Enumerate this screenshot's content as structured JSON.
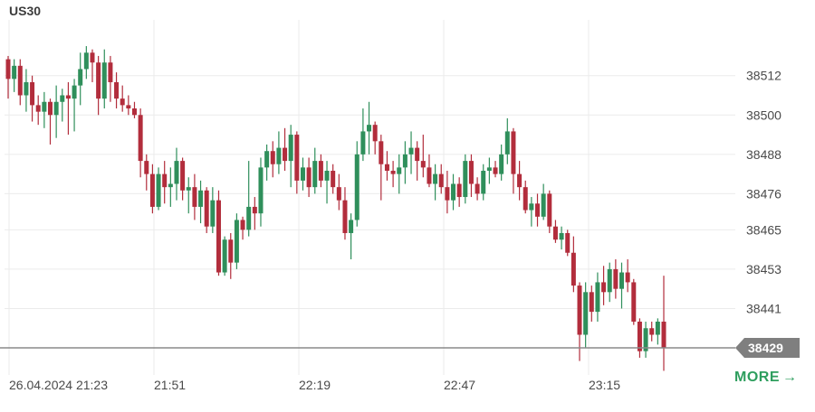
{
  "header": {
    "symbol": "US30"
  },
  "more": {
    "label": "MORE",
    "arrow": "→"
  },
  "colors": {
    "up": "#2f8f5b",
    "down": "#b22d3c",
    "grid": "#ebebeb",
    "price_line": "#8a8a8a",
    "price_badge": "#7f7f7f",
    "more": "#2e9e5e"
  },
  "chart_data": {
    "type": "candlestick",
    "title": "US30",
    "y_ticks": [
      38512,
      38500,
      38488,
      38476,
      38465,
      38453,
      38441
    ],
    "ylim": [
      38423.5,
      38529
    ],
    "x_ticks": [
      "26.04.2024 21:23",
      "21:51",
      "22:19",
      "22:47",
      "23:15"
    ],
    "last_price": 38429,
    "candles": [
      [
        38517,
        38518,
        38505,
        38511
      ],
      [
        38511,
        38517,
        38507,
        38515
      ],
      [
        38515,
        38517,
        38503,
        38506
      ],
      [
        38506,
        38514,
        38501,
        38510
      ],
      [
        38510,
        38512,
        38498,
        38503
      ],
      [
        38503,
        38506,
        38497,
        38501
      ],
      [
        38501,
        38507,
        38496,
        38504
      ],
      [
        38504,
        38505,
        38491,
        38500
      ],
      [
        38500,
        38509,
        38493,
        38504
      ],
      [
        38504,
        38508,
        38498,
        38506
      ],
      [
        38506,
        38510,
        38494,
        38505
      ],
      [
        38505,
        38511,
        38495,
        38509
      ],
      [
        38509,
        38519,
        38503,
        38514
      ],
      [
        38514,
        38521,
        38511,
        38519
      ],
      [
        38519,
        38520,
        38510,
        38516
      ],
      [
        38516,
        38518,
        38500,
        38505
      ],
      [
        38505,
        38520,
        38502,
        38516
      ],
      [
        38516,
        38518,
        38504,
        38510
      ],
      [
        38510,
        38513,
        38502,
        38505
      ],
      [
        38505,
        38509,
        38501,
        38503
      ],
      [
        38503,
        38506,
        38500,
        38502
      ],
      [
        38502,
        38504,
        38499,
        38500
      ],
      [
        38500,
        38502,
        38481,
        38486
      ],
      [
        38486,
        38488,
        38477,
        38482
      ],
      [
        38482,
        38485,
        38470,
        38472
      ],
      [
        38472,
        38484,
        38471,
        38482
      ],
      [
        38482,
        38486,
        38473,
        38478
      ],
      [
        38478,
        38484,
        38472,
        38479
      ],
      [
        38479,
        38490,
        38474,
        38486
      ],
      [
        38486,
        38487,
        38474,
        38477
      ],
      [
        38477,
        38481,
        38470,
        38478
      ],
      [
        38478,
        38482,
        38468,
        38472
      ],
      [
        38472,
        38480,
        38467,
        38477
      ],
      [
        38477,
        38478,
        38464,
        38466
      ],
      [
        38466,
        38478,
        38464,
        38474
      ],
      [
        38474,
        38477,
        38451,
        38452
      ],
      [
        38452,
        38463,
        38451,
        38462
      ],
      [
        38462,
        38464,
        38450,
        38455
      ],
      [
        38455,
        38470,
        38453,
        38468
      ],
      [
        38468,
        38469,
        38462,
        38465
      ],
      [
        38465,
        38486,
        38463,
        38472
      ],
      [
        38472,
        38475,
        38465,
        38470
      ],
      [
        38470,
        38487,
        38466,
        38484
      ],
      [
        38484,
        38491,
        38480,
        38489
      ],
      [
        38489,
        38492,
        38481,
        38485
      ],
      [
        38485,
        38495,
        38482,
        38490
      ],
      [
        38490,
        38496,
        38483,
        38486
      ],
      [
        38486,
        38497,
        38478,
        38494
      ],
      [
        38494,
        38495,
        38476,
        38480
      ],
      [
        38480,
        38487,
        38477,
        38484
      ],
      [
        38484,
        38487,
        38475,
        38478
      ],
      [
        38478,
        38490,
        38476,
        38486
      ],
      [
        38486,
        38488,
        38478,
        38480
      ],
      [
        38480,
        38486,
        38473,
        38483
      ],
      [
        38483,
        38485,
        38476,
        38478
      ],
      [
        38478,
        38482,
        38471,
        38474
      ],
      [
        38474,
        38478,
        38462,
        38464
      ],
      [
        38464,
        38470,
        38456,
        38468
      ],
      [
        38468,
        38492,
        38466,
        38488
      ],
      [
        38488,
        38502,
        38486,
        38495
      ],
      [
        38495,
        38504,
        38488,
        38497
      ],
      [
        38497,
        38498,
        38488,
        38492
      ],
      [
        38492,
        38494,
        38474,
        38485
      ],
      [
        38485,
        38489,
        38480,
        38483
      ],
      [
        38483,
        38486,
        38478,
        38482
      ],
      [
        38482,
        38488,
        38476,
        38484
      ],
      [
        38484,
        38492,
        38479,
        38488
      ],
      [
        38488,
        38495,
        38482,
        38490
      ],
      [
        38490,
        38492,
        38480,
        38486
      ],
      [
        38486,
        38494,
        38481,
        38484
      ],
      [
        38484,
        38488,
        38478,
        38479
      ],
      [
        38479,
        38485,
        38474,
        38482
      ],
      [
        38482,
        38485,
        38476,
        38478
      ],
      [
        38478,
        38483,
        38470,
        38474
      ],
      [
        38474,
        38482,
        38471,
        38479
      ],
      [
        38479,
        38481,
        38472,
        38475
      ],
      [
        38475,
        38488,
        38473,
        38486
      ],
      [
        38486,
        38488,
        38475,
        38479
      ],
      [
        38479,
        38481,
        38474,
        38476
      ],
      [
        38476,
        38485,
        38474,
        38483
      ],
      [
        38483,
        38487,
        38479,
        38484
      ],
      [
        38484,
        38486,
        38481,
        38482
      ],
      [
        38482,
        38491,
        38480,
        38488
      ],
      [
        38488,
        38499,
        38485,
        38495
      ],
      [
        38495,
        38496,
        38476,
        38482
      ],
      [
        38482,
        38486,
        38474,
        38478
      ],
      [
        38478,
        38480,
        38470,
        38471
      ],
      [
        38471,
        38475,
        38466,
        38473
      ],
      [
        38473,
        38476,
        38466,
        38469
      ],
      [
        38469,
        38479,
        38468,
        38476
      ],
      [
        38476,
        38477,
        38464,
        38466
      ],
      [
        38466,
        38468,
        38461,
        38462
      ],
      [
        38462,
        38466,
        38459,
        38464
      ],
      [
        38464,
        38465,
        38457,
        38458
      ],
      [
        38458,
        38463,
        38446,
        38448
      ],
      [
        38448,
        38449,
        38425,
        38433
      ],
      [
        38433,
        38449,
        38429,
        38446
      ],
      [
        38446,
        38448,
        38437,
        38440
      ],
      [
        38440,
        38452,
        38437,
        38449
      ],
      [
        38449,
        38454,
        38442,
        38446
      ],
      [
        38446,
        38455,
        38443,
        38453
      ],
      [
        38453,
        38456,
        38444,
        38447
      ],
      [
        38447,
        38455,
        38441,
        38452
      ],
      [
        38452,
        38456,
        38446,
        38449
      ],
      [
        38449,
        38450,
        38436,
        38437
      ],
      [
        38437,
        38438,
        38426,
        38428
      ],
      [
        38428,
        38437,
        38426,
        38435
      ],
      [
        38435,
        38437,
        38431,
        38433
      ],
      [
        38433,
        38438,
        38430,
        38437
      ],
      [
        38437,
        38451,
        38422,
        38429
      ]
    ]
  }
}
